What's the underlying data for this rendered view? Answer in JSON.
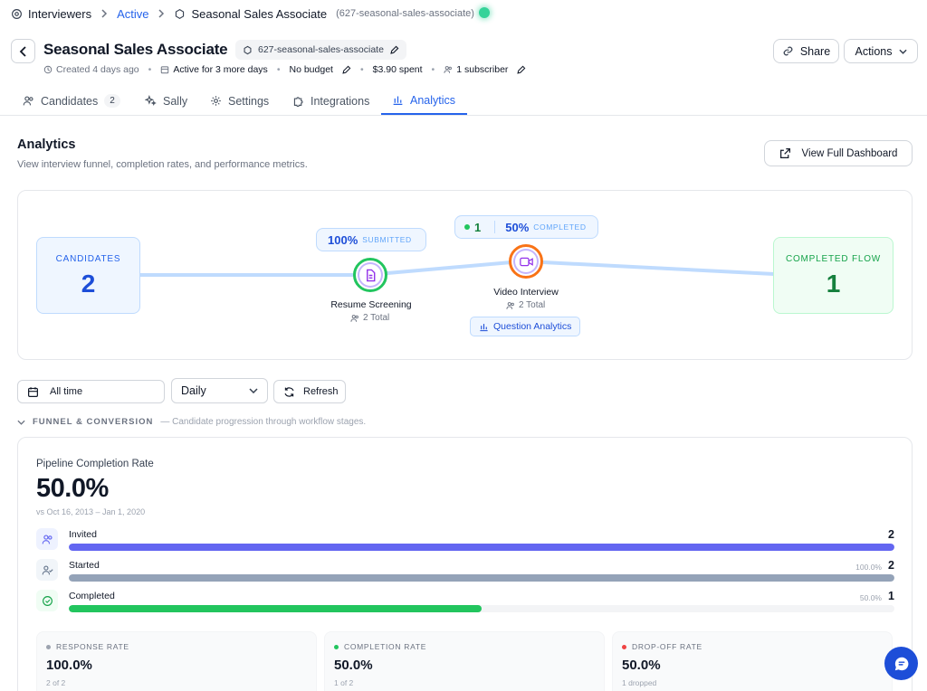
{
  "breadcrumb": {
    "root": "Interviewers",
    "status": "Active",
    "job": "Seasonal Sales Associate",
    "slug": "(627-seasonal-sales-associate)"
  },
  "header": {
    "title": "Seasonal Sales Associate",
    "slug": "627-seasonal-sales-associate",
    "meta": {
      "created": "Created 4 days ago",
      "active": "Active for 3 more days",
      "budget": "No budget",
      "spent": "$3.90 spent",
      "subscribers": "1 subscriber"
    },
    "share_label": "Share",
    "actions_label": "Actions"
  },
  "tabs": [
    {
      "label": "Candidates",
      "badge": "2"
    },
    {
      "label": "Sally"
    },
    {
      "label": "Settings"
    },
    {
      "label": "Integrations"
    },
    {
      "label": "Analytics"
    }
  ],
  "analytics": {
    "title": "Analytics",
    "subtitle": "View interview funnel, completion rates, and performance metrics.",
    "dashboard_button": "View Full Dashboard"
  },
  "flow": {
    "candidates": {
      "label": "CANDIDATES",
      "value": "2"
    },
    "completed": {
      "label": "COMPLETED FLOW",
      "value": "1"
    },
    "resume": {
      "name": "Resume Screening",
      "total": "2 Total",
      "pct": "100%",
      "pct_label": "SUBMITTED"
    },
    "video": {
      "name": "Video Interview",
      "total": "2 Total",
      "count": "1",
      "pct": "50%",
      "pct_label": "COMPLETED",
      "analytics_button": "Question Analytics"
    }
  },
  "filters": {
    "time": "All time",
    "interval": "Daily",
    "refresh": "Refresh"
  },
  "funnel": {
    "caption": "FUNNEL & CONVERSION",
    "description": "— Candidate progression through workflow stages.",
    "completion_label": "Pipeline Completion Rate",
    "completion_value": "50.0%",
    "range": "vs Oct 16, 2013 – Jan 1, 2020",
    "rows": [
      {
        "label": "Invited",
        "pct": "",
        "count": "2",
        "fraction": 1.0,
        "color": "#6366f1"
      },
      {
        "label": "Started",
        "pct": "100.0%",
        "count": "2",
        "fraction": 1.0,
        "color": "#94a3b8"
      },
      {
        "label": "Completed",
        "pct": "50.0%",
        "count": "1",
        "fraction": 0.5,
        "color": "#22c55e"
      }
    ],
    "metrics": [
      {
        "label": "RESPONSE RATE",
        "value": "100.0%",
        "sub": "2 of 2",
        "color": "#9ca3af"
      },
      {
        "label": "COMPLETION RATE",
        "value": "50.0%",
        "sub": "1 of 2",
        "color": "#22c55e"
      },
      {
        "label": "DROP-OFF RATE",
        "value": "50.0%",
        "sub": "1 dropped",
        "color": "#ef4444"
      }
    ]
  },
  "colors": {
    "accent": "#2563eb",
    "success": "#22c55e",
    "danger": "#ef4444"
  }
}
